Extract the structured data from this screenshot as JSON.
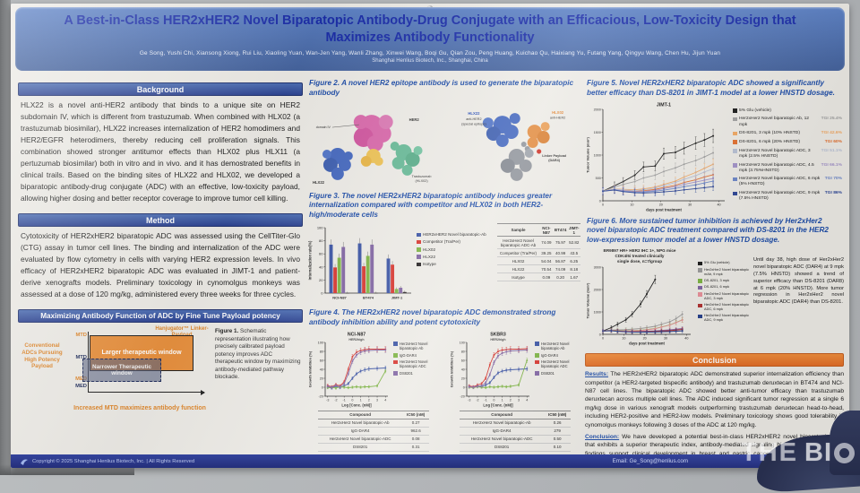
{
  "poster": {
    "title": "A Best-in-Class HER2xHER2 Novel Biparatopic Antibody-Drug Conjugate with an Efficacious, Low-Toxicity Design that Maximizes Antibody Functionality",
    "authors": "Ge Song, Yushi Chi, Xiansong Xiong, Rui Liu, Xiaoling Yuan, Wan-Jen Yang, Wanli Zhang, Xinwei Wang, Boqi Gu, Qian Zou, Peng Huang, Kuichao Qu, Haixiang Yu, Futang Yang, Qingyu Wang, Chen Hu, Jijun Yuan",
    "affiliation": "Shanghai Henlius Biotech, Inc., Shanghai, China"
  },
  "left": {
    "background": {
      "heading": "Background",
      "text": "HLX22 is a novel anti-HER2 antibody that binds to a unique site on HER2 subdomain IV, which is different from trastuzumab. When combined with HLX02 (a trastuzumab biosimilar), HLX22 increases internalization of HER2 homodimers and HER2/EGFR heterodimers, thereby reducing cell proliferation signals. This combination showed stronger antitumor effects than HLX02 plus HLX11 (a pertuzumab biosimilar) both in vitro and in vivo. and it has demostrated benefits in clinical trails. Based on the binding sites of HLX22 and HLX02, we developed a biparatopic antibody-drug conjugate (ADC) with an effective, low-toxicity payload, allowing higher dosing and better receptor coverage to improve tumor cell killing."
    },
    "method": {
      "heading": "Method",
      "text": "Cytotoxicity of HER2xHER2 biparatopic ADC was assessed using the CellTiter-Glo (CTG) assay in tumor cell lines. The binding and internalization of the ADC were evaluated by flow cytometry in cells with varying HER2 expression levels. In vivo efficacy of HER2xHER2 biparatopic ADC was evaluated in JIMT-1 and patient-derive xenografts models. Preliminary toxicology in cynomolgus monkeys was assessed at a dose of 120 mg/kg, administered every three weeks for three cycles."
    },
    "payload_box": {
      "heading": "Maximizing Antibody Function of ADC by Fine Tune Payload potency",
      "left_label": "Conventional ADCs Pursuing High Potency Payload",
      "right_label": "Hanjugator™ Linker-Payload",
      "axis_labels": [
        "MTD",
        "MTD",
        "MED",
        "MED"
      ],
      "large_window": "Larger therapeutic window",
      "narrow_window": "Narrower Therapeutic window",
      "x_caption": "Increased MTD maximizes antibody function",
      "figure1_label": "Figure 1.",
      "figure1_caption": "Schematic representation illustrating how precisely calibrated payload potency improves ADC therapeutic window by maximizing antibody-mediated pathway blockade."
    }
  },
  "middle": {
    "fig2": {
      "caption": "Figure 2. A novel HER2 epitope antibody is used to generate the biparatopic antibody",
      "labels": {
        "domain": "domain IV",
        "her2": "HER2",
        "hlx22": "HLX22",
        "tras1": "Trastuzumab",
        "tras2": "(HLX02)",
        "r_hlx22": "HLX22",
        "r_hlx22b": "anti-HER2",
        "r_hlx22c": "(special epitope)",
        "r_hlx02": "HLX02",
        "r_hlx02b": "anti-HER2",
        "linker1": "Linker Payload",
        "linker2": "(DAR4)"
      }
    },
    "fig3": {
      "caption": "Figure 3. The novel HER2xHER2 biparatopic antibody induces greater internalization compared with competitor and HLX02 in both HER2-high/moderate cells",
      "table": {
        "columns": [
          "Sample",
          "NCI-N87",
          "BT474",
          "JIMT-1"
        ],
        "rows": [
          [
            "Her2xHer2 Novel biparatopic ADC-Ab",
            "74.09",
            "75.97",
            "52.82"
          ],
          [
            "Competitor (Tra/Per)",
            "39.25",
            "40.99",
            "43.5"
          ],
          [
            "HLX02",
            "54.04",
            "56.87",
            "6.25"
          ],
          [
            "HLX22",
            "70.54",
            "74.09",
            "8.18"
          ],
          [
            "Isotype",
            "0.09",
            "0.20",
            "1.67"
          ]
        ]
      }
    },
    "fig4": {
      "caption": "Figure 4. The HER2xHER2 novel biparatopic ADC demonstrated strong antibody inhibition ability and potent cytotoxicity",
      "tables": [
        {
          "columns": [
            "Compound",
            "IC50 (nM)"
          ],
          "rows": [
            [
              "Her2xHer2 Novel biparatopic-Ab",
              "0.27"
            ],
            [
              "IgG-DAR4",
              "962.6"
            ],
            [
              "Her2xHer2 Novel biparatopic-ADC",
              "0.08"
            ],
            [
              "DS8201",
              "0.31"
            ]
          ]
        },
        {
          "columns": [
            "Compound",
            "IC50 (nM)"
          ],
          "rows": [
            [
              "Her2xHer2 Novel biparatopic-Ab",
              "0.26"
            ],
            [
              "IgG-DAR4",
              "279"
            ],
            [
              "Her2xHer2 Novel biparatopic-ADC",
              "0.50"
            ],
            [
              "DS8201",
              "0.10"
            ]
          ]
        }
      ]
    }
  },
  "right": {
    "fig5": {
      "caption": "Figure 5. Novel HER2xHER2 biparatopic ADC showed a significantly better efficacy than DS-8201 in JIMT-1 model at a lower HNSTD dosage."
    },
    "fig6": {
      "caption": "Figure 6. More sustained tumor inhibition is achieved by Her2xHer2 novel biparatopic ADC treatment compared with DS-8201 in the HER2 low-expression tumor model at a lower HNSTD dosage.",
      "chart_title1": "BR9897 HR+ HER2 IHC 1+, NPG mice",
      "chart_title2": "CDK4/6i treated clinically",
      "chart_title3": "single dose, n=7/group",
      "note": "Until day 38, high dose of Her2xHer2 novel biparatopic ADC (DAR4) at 9 mpk (7.5% HNSTD) showed a trend of superior efficacy than DS-8201 (DAR8) at 6 mpk (20% HNSTD). More tumor regression in Her2xHer2 novel biparatopic ADC (DAR4) than DS-8201."
    },
    "conclusion": {
      "heading": "Conclusion",
      "results_label": "Results:",
      "results_text": " The HER2xHER2 biparatopic ADC demonstrated superior internalization efficiency than competitor (a HER2-targeted bispecific antibody) and trastuzumab deruxtecan in BT474 and NCI-N87 cell lines. The biparatopic ADC showed better anti-tumor efficacy than trastuzumab deruxtecan across multiple cell lines. The ADC induced significant tumor regression at a single 6 mg/kg dose in various xenograft models outperforming trastuzumab deruxtecan head-to-head, including HER2-positive and HER2-low models. Preliminary toxicology shows good tolerability in cynomolgus monkeys following 3 doses of the ADC at 120 mg/kg.",
      "conclusion_label": "Conclusion:",
      "conclusion_text": " We have developed a potential best-in-class HER2xHER2 novel biparatopic ADC that exhibits a superior therapeutic index, antibody-mediated signaling blockade. The preclinical findings support clinical development in breast and gastric cancers, with the hope that the improved therapeutic index of this agent confers survival benefit."
    }
  },
  "footer": {
    "copyright": "Copyright © 2025 Shanghai Henlius Biotech, Inc. | All Rights Reserved",
    "email": "Email: Ge_Song@henlius.com"
  },
  "photo": {
    "watermark": {
      "the": "THE",
      "bi": "BI"
    }
  },
  "chart_data": [
    {
      "id": "fig3-internalization",
      "type": "bar",
      "categories": [
        "NCI-N87",
        "BT474",
        "JIMT-1"
      ],
      "series": [
        {
          "name": "HER2xHER2 Novel biparatopic-Ab",
          "color": "#3a53a4",
          "values": [
            74.09,
            75.97,
            52.82
          ]
        },
        {
          "name": "Competitor (Tra/Per)",
          "color": "#d7352e",
          "values": [
            39.25,
            40.99,
            43.5
          ]
        },
        {
          "name": "HLX02",
          "color": "#7cb342",
          "values": [
            54.04,
            56.87,
            6.25
          ]
        },
        {
          "name": "HLX22",
          "color": "#8064a2",
          "values": [
            70.54,
            74.09,
            8.18
          ]
        },
        {
          "name": "Isotype",
          "color": "#231f20",
          "values": [
            0.09,
            0.2,
            1.67
          ]
        }
      ],
      "ylabel": "Internalization rate(%)",
      "ylim": [
        0,
        100
      ],
      "yticks": [
        0,
        20,
        40,
        60,
        80,
        100
      ],
      "legend_position": "right",
      "grid": false
    },
    {
      "id": "fig4-nci-n87",
      "type": "line",
      "title": "NCI-N87",
      "title2": "HER2high",
      "xlabel": "Log [Conc. (nM)]",
      "ylabel": "Growth Inhibition (%)",
      "xlim": [
        -3.3,
        4.3
      ],
      "ylim": [
        -20,
        100
      ],
      "xticks": [
        -3,
        -2,
        -1,
        0,
        1,
        2,
        3,
        4
      ],
      "yticks": [
        -20,
        0,
        20,
        40,
        60,
        80,
        100
      ],
      "errbar": 0.05,
      "x": [
        -3,
        -2.5,
        -2,
        -1.5,
        -1,
        -0.5,
        0,
        0.5,
        1,
        1.5,
        2,
        3,
        4
      ],
      "series": [
        {
          "name": "Her2xHer2 Novel biparatopic-Ab",
          "color": "#3a53a4",
          "y": [
            0,
            -2,
            2,
            -1,
            3,
            8,
            20,
            30,
            36,
            39,
            41,
            42,
            43
          ]
        },
        {
          "name": "IgG-DAR4",
          "color": "#7cb342",
          "y": [
            -1,
            0,
            -2,
            1,
            0,
            -1,
            0,
            1,
            0,
            1,
            1,
            3,
            36
          ]
        },
        {
          "name": "Her2xHer2 Novel biparatopic ADC",
          "color": "#d7352e",
          "y": [
            4,
            1,
            6,
            3,
            12,
            40,
            68,
            78,
            82,
            84,
            85,
            85,
            85
          ]
        },
        {
          "name": "DS8201",
          "color": "#8064a2",
          "y": [
            2,
            0,
            4,
            1,
            8,
            30,
            58,
            72,
            78,
            81,
            82,
            83,
            83
          ]
        }
      ],
      "grid": false,
      "legend_position": "right"
    },
    {
      "id": "fig4-skbr3",
      "type": "line",
      "title": "SKBR3",
      "title2": "HER2high",
      "xlabel": "Log [Conc. (nM)]",
      "ylabel": "Growth Inhibition (%)",
      "xlim": [
        -3.3,
        4.3
      ],
      "ylim": [
        -20,
        100
      ],
      "xticks": [
        -3,
        -2,
        -1,
        0,
        1,
        2,
        3,
        4
      ],
      "yticks": [
        -20,
        0,
        20,
        40,
        60,
        80,
        100
      ],
      "errbar": 0.05,
      "x": [
        -3,
        -2.5,
        -2,
        -1.5,
        -1,
        -0.5,
        0,
        0.5,
        1,
        1.5,
        2,
        3,
        4
      ],
      "series": [
        {
          "name": "Her2xHer2 Novel biparatopic-Ab",
          "color": "#3a53a4",
          "y": [
            2,
            0,
            3,
            1,
            5,
            10,
            22,
            32,
            36,
            38,
            39,
            40,
            41
          ]
        },
        {
          "name": "IgG-DAR4",
          "color": "#7cb342",
          "y": [
            0,
            -1,
            1,
            0,
            -1,
            1,
            0,
            1,
            2,
            1,
            2,
            5,
            60
          ]
        },
        {
          "name": "Her2xHer2 Novel biparatopic ADC",
          "color": "#d7352e",
          "y": [
            3,
            1,
            5,
            8,
            20,
            50,
            72,
            80,
            83,
            84,
            85,
            85,
            86
          ]
        },
        {
          "name": "DS8201",
          "color": "#8064a2",
          "y": [
            1,
            0,
            2,
            3,
            10,
            28,
            55,
            70,
            76,
            79,
            81,
            82,
            83
          ]
        }
      ],
      "grid": false,
      "legend_position": "right"
    },
    {
      "id": "fig5-jimt1",
      "type": "line",
      "title": "JIMT-1",
      "xlabel": "days post treatment",
      "ylabel": "Tumor Volume (mm³)",
      "xlim": [
        0,
        42
      ],
      "ylim": [
        0,
        2000
      ],
      "xticks": [
        0,
        10,
        20,
        30,
        40
      ],
      "yticks": [
        0,
        500,
        1000,
        1500,
        2000
      ],
      "errbar": 0.09,
      "x": [
        0,
        4,
        7,
        11,
        14,
        18,
        21,
        25,
        28,
        32,
        35,
        38
      ],
      "series": [
        {
          "name": "5% Glu (vehicle)",
          "color": "#1a1a1a",
          "tgi": "",
          "y": [
            210,
            330,
            420,
            560,
            740,
            760,
            1030,
            1060,
            1150,
            1260,
            1330,
            1420
          ]
        },
        {
          "name": "Her2xHer2 Novel biparatopic Ab, 12 mpk",
          "color": "#a0a0a0",
          "tgi": "TGI 25.4%",
          "y": [
            210,
            300,
            360,
            420,
            500,
            560,
            640,
            720,
            800,
            880,
            960,
            1050
          ]
        },
        {
          "name": "DS-8201, 3 mpk (10% HNSTD)",
          "color": "#f2a964",
          "tgi": "TGI 42.6%",
          "y": [
            210,
            260,
            250,
            240,
            260,
            300,
            360,
            430,
            520,
            620,
            710,
            800
          ]
        },
        {
          "name": "DS-8201, 6 mpk (20% HNSTD)",
          "color": "#e2702f",
          "tgi": "TGI 60%",
          "y": [
            210,
            250,
            230,
            210,
            220,
            250,
            290,
            340,
            400,
            460,
            520,
            570
          ]
        },
        {
          "name": "Her2xHer2 Novel biparatopic ADC, 3 mpk (2.5% HNSTD)",
          "color": "#b8c0d4",
          "tgi": "TGI 51.1%",
          "y": [
            210,
            255,
            240,
            225,
            240,
            280,
            330,
            400,
            470,
            550,
            630,
            700
          ]
        },
        {
          "name": "Her2xHer2 Novel biparatopic ADC, 4.5 mpk (3.75%HNSTD)",
          "color": "#a393c8",
          "tgi": "TGI 66.1%",
          "y": [
            210,
            245,
            220,
            200,
            205,
            230,
            265,
            310,
            360,
            410,
            450,
            490
          ]
        },
        {
          "name": "Her2xHer2 Novel biparatopic ADC, 6 mpk (5% HNSTD)",
          "color": "#6d87c8",
          "tgi": "TGI 70%",
          "y": [
            210,
            240,
            210,
            190,
            190,
            210,
            235,
            270,
            310,
            350,
            390,
            430
          ]
        },
        {
          "name": "Her2xHer2 Novel biparatopic ADC, 9 mpk (7.5% HNSTD)",
          "color": "#2e4796",
          "tgi": "TGI 86%",
          "y": [
            210,
            235,
            200,
            175,
            170,
            180,
            195,
            215,
            240,
            265,
            285,
            310
          ]
        }
      ],
      "grid": false,
      "legend_position": "right"
    },
    {
      "id": "fig6-br9897",
      "type": "line",
      "title": "",
      "xlabel": "days post treatment",
      "ylabel": "Tumor Volume (mm³)",
      "xlim": [
        0,
        42
      ],
      "ylim": [
        0,
        3000
      ],
      "xticks": [
        0,
        10,
        20,
        30,
        40
      ],
      "yticks": [
        0,
        1000,
        2000,
        3000
      ],
      "errbar": 0.07,
      "x": [
        0,
        4,
        7,
        11,
        14,
        18,
        21,
        25,
        28,
        32,
        35,
        38
      ],
      "series": [
        {
          "name": "5% Glu (vehicle)",
          "color": "#1a1a1a",
          "x": [
            0,
            4,
            7,
            11,
            14,
            18,
            21,
            25
          ],
          "y": [
            150,
            300,
            450,
            650,
            900,
            1350,
            1800,
            2450
          ]
        },
        {
          "name": "Her2xHer2 Novel biparatopic mAb, 9 mpk",
          "color": "#9a9a9a",
          "y": [
            150,
            190,
            200,
            210,
            230,
            260,
            300,
            360,
            450,
            560,
            700,
            900
          ]
        },
        {
          "name": "DS-8201, 3 mpk",
          "color": "#7cb342",
          "y": [
            150,
            180,
            170,
            160,
            165,
            180,
            210,
            260,
            330,
            420,
            530,
            650
          ]
        },
        {
          "name": "DS-8201, 6 mpk",
          "color": "#8064a2",
          "y": [
            150,
            170,
            150,
            130,
            125,
            130,
            140,
            155,
            175,
            200,
            230,
            260
          ]
        },
        {
          "name": "Her2xHer2 Novel biparatopic ADC, 3 mpk",
          "color": "#e8909a",
          "y": [
            150,
            175,
            160,
            150,
            155,
            170,
            200,
            250,
            320,
            410,
            520,
            640
          ]
        },
        {
          "name": "Her2xHer2 Novel biparatopic ADC, 6 mpk",
          "color": "#b03030",
          "y": [
            150,
            165,
            145,
            125,
            115,
            115,
            120,
            130,
            145,
            165,
            190,
            220
          ]
        },
        {
          "name": "Her2xHer2 Novel biparatopic ADC, 9 mpk",
          "color": "#27408b",
          "y": [
            150,
            160,
            135,
            115,
            105,
            100,
            100,
            105,
            115,
            125,
            140,
            155
          ]
        }
      ],
      "grid": false,
      "legend_position": "right"
    }
  ]
}
